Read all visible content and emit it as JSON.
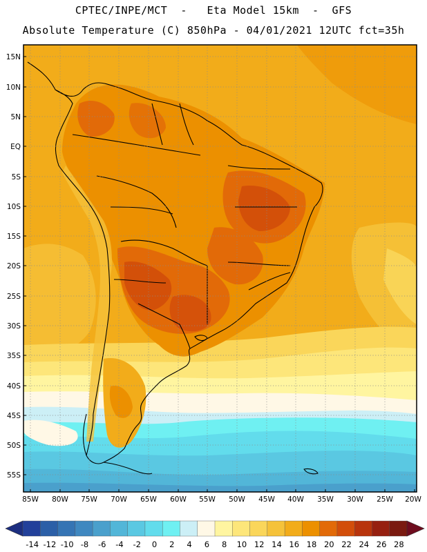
{
  "header": {
    "line1": "CPTEC/INPE/MCT  -   Eta Model 15km  -  GFS",
    "line2": "Absolute Temperature (C) 850hPa - 04/01/2021 12UTC fct=35h"
  },
  "map": {
    "lat_labels": [
      "15N",
      "10N",
      "5N",
      "EQ",
      "5S",
      "10S",
      "15S",
      "20S",
      "25S",
      "30S",
      "35S",
      "40S",
      "45S",
      "50S",
      "55S"
    ],
    "lon_labels": [
      "85W",
      "80W",
      "75W",
      "70W",
      "65W",
      "60W",
      "55W",
      "50W",
      "45W",
      "40W",
      "35W",
      "30W",
      "25W",
      "20W"
    ]
  },
  "colorbar": {
    "labels": [
      "-14",
      "-12",
      "-10",
      "-8",
      "-6",
      "-4",
      "-2",
      "0",
      "2",
      "4",
      "6",
      "8",
      "10",
      "12",
      "14",
      "16",
      "18",
      "20",
      "22",
      "24",
      "26",
      "28"
    ],
    "colors": [
      "#22409a",
      "#2b5fa7",
      "#3574b4",
      "#3f88c0",
      "#4aa0cc",
      "#52b6d8",
      "#5ac8e2",
      "#62dcec",
      "#6ff0f2",
      "#cceff6",
      "#fff8e6",
      "#fff5a0",
      "#fde67a",
      "#fad65a",
      "#f5c23a",
      "#f2ac1a",
      "#ec9000",
      "#e26a08",
      "#d24e0a",
      "#b8340c",
      "#962010",
      "#7a1a10"
    ],
    "left_arrow_color": "#1c2e80",
    "right_arrow_color": "#6e0c1e"
  }
}
